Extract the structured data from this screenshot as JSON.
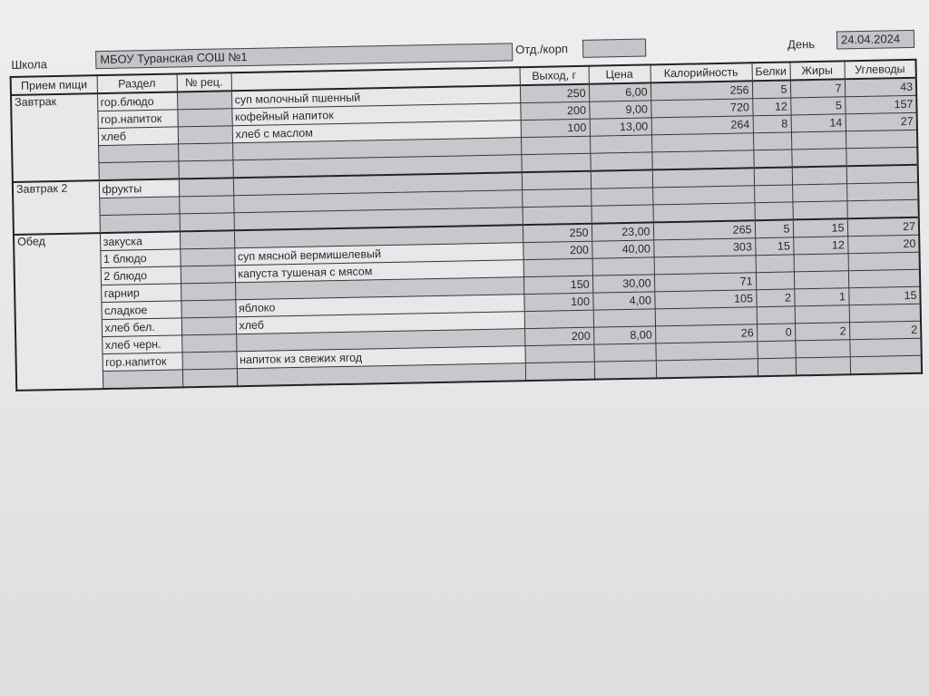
{
  "header": {
    "school_label": "Школа",
    "school_value": "МБОУ Туранская СОШ №1",
    "dept_label": "Отд./корп",
    "dept_value": "",
    "day_label": "День",
    "day_value": "24.04.2024"
  },
  "columns": [
    "Прием пищи",
    "Раздел",
    "№ рец.",
    "",
    "Выход, г",
    "Цена",
    "Калорийность",
    "Белки",
    "Жиры",
    "Углеводы"
  ],
  "meals": [
    {
      "name": "Завтрак",
      "rows": [
        {
          "section": "гор.блюдо",
          "dish": "суп молочный пшенный",
          "vals": [
            "250",
            "6,00",
            "256",
            "5",
            "7",
            "43"
          ]
        },
        {
          "section": "гор.напиток",
          "dish": "кофейный напиток",
          "vals": [
            "200",
            "9,00",
            "720",
            "12",
            "5",
            "157"
          ]
        },
        {
          "section": "хлеб",
          "dish": "хлеб с маслом",
          "vals": [
            "100",
            "13,00",
            "264",
            "8",
            "14",
            "27"
          ]
        },
        {
          "section": "",
          "dish": "",
          "vals": [
            "",
            "",
            "",
            "",
            "",
            ""
          ]
        },
        {
          "section": "",
          "dish": "",
          "vals": [
            "",
            "",
            "",
            "",
            "",
            ""
          ]
        }
      ]
    },
    {
      "name": "Завтрак 2",
      "rows": [
        {
          "section": "фрукты",
          "dish": "",
          "vals": [
            "",
            "",
            "",
            "",
            "",
            ""
          ]
        },
        {
          "section": "",
          "dish": "",
          "vals": [
            "",
            "",
            "",
            "",
            "",
            ""
          ]
        },
        {
          "section": "",
          "dish": "",
          "vals": [
            "",
            "",
            "",
            "",
            "",
            ""
          ]
        }
      ]
    },
    {
      "name": "Обед",
      "rows": [
        {
          "section": "закуска",
          "dish": "",
          "vals": [
            "250",
            "23,00",
            "265",
            "5",
            "15",
            "27"
          ]
        },
        {
          "section": "1 блюдо",
          "dish": "суп мясной вермишелевый",
          "vals": [
            "200",
            "40,00",
            "303",
            "15",
            "12",
            "20"
          ]
        },
        {
          "section": "2 блюдо",
          "dish": "капуста тушеная с мясом",
          "vals": [
            "",
            "",
            "",
            "",
            "",
            ""
          ]
        },
        {
          "section": "гарнир",
          "dish": "",
          "vals": [
            "150",
            "30,00",
            "71",
            "",
            "",
            ""
          ]
        },
        {
          "section": "сладкое",
          "dish": "яблоко",
          "vals": [
            "100",
            "4,00",
            "105",
            "2",
            "1",
            "15"
          ]
        },
        {
          "section": "хлеб бел.",
          "dish": "хлеб",
          "vals": [
            "",
            "",
            "",
            "",
            "",
            ""
          ]
        },
        {
          "section": "хлеб черн.",
          "dish": "",
          "vals": [
            "200",
            "8,00",
            "26",
            "0",
            "2",
            "2"
          ]
        },
        {
          "section": "гор.напиток",
          "dish": "напиток из свежих ягод",
          "vals": [
            "",
            "",
            "",
            "",
            "",
            ""
          ]
        },
        {
          "section": "",
          "dish": "",
          "vals": [
            "",
            "",
            "",
            "",
            "",
            ""
          ]
        }
      ]
    }
  ]
}
